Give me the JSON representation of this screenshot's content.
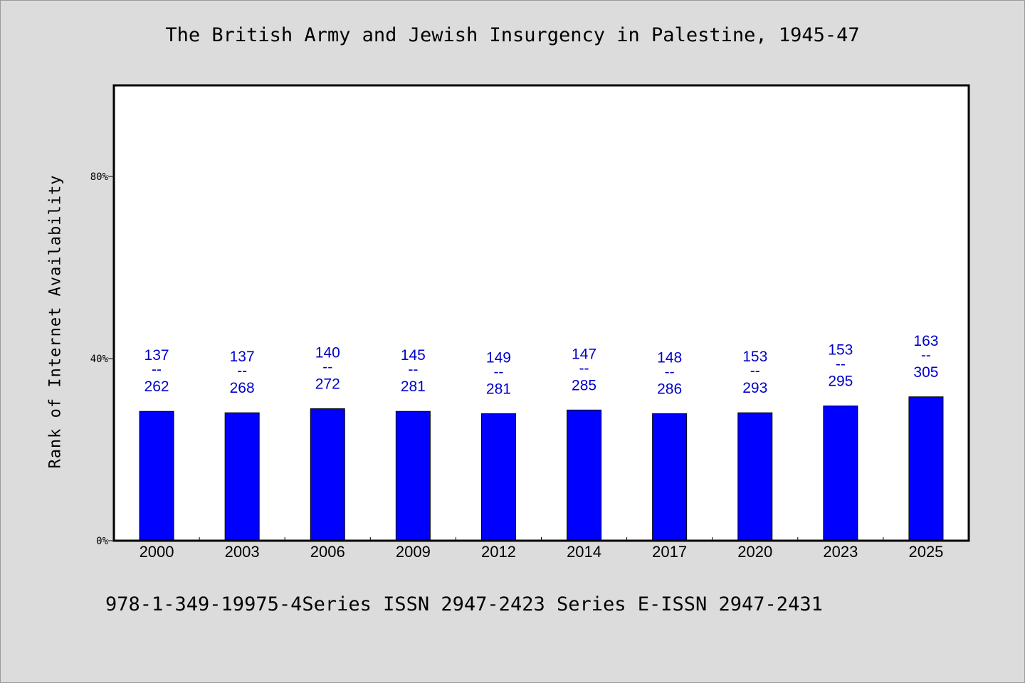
{
  "chart_data": {
    "type": "bar",
    "title": "The British Army and Jewish Insurgency in Palestine, 1945-47",
    "ylabel": "Rank of Internet Availability",
    "xlabel": "",
    "categories": [
      "2000",
      "2003",
      "2006",
      "2009",
      "2012",
      "2014",
      "2017",
      "2020",
      "2023",
      "2025"
    ],
    "values": [
      28.4,
      28.1,
      29.0,
      28.4,
      27.9,
      28.7,
      27.9,
      28.1,
      29.6,
      31.6
    ],
    "data_labels": [
      {
        "top": "137",
        "sep": "--",
        "bottom": "262"
      },
      {
        "top": "137",
        "sep": "--",
        "bottom": "268"
      },
      {
        "top": "140",
        "sep": "--",
        "bottom": "272"
      },
      {
        "top": "145",
        "sep": "--",
        "bottom": "281"
      },
      {
        "top": "149",
        "sep": "--",
        "bottom": "281"
      },
      {
        "top": "147",
        "sep": "--",
        "bottom": "285"
      },
      {
        "top": "148",
        "sep": "--",
        "bottom": "286"
      },
      {
        "top": "153",
        "sep": "--",
        "bottom": "293"
      },
      {
        "top": "153",
        "sep": "--",
        "bottom": "295"
      },
      {
        "top": "163",
        "sep": "--",
        "bottom": "305"
      }
    ],
    "yticks": [
      0,
      40,
      80
    ],
    "ytick_labels": [
      "0%",
      "40%",
      "80%"
    ],
    "ylim": [
      0,
      100
    ],
    "grid": false,
    "colors": {
      "bar": "#0000ff",
      "label": "#0000cc",
      "axis": "#000000",
      "plot_bg": "#ffffff",
      "page_bg": "#dcdcdc"
    }
  },
  "footer": "978-1-349-19975-4Series ISSN 2947-2423 Series E-ISSN 2947-2431"
}
